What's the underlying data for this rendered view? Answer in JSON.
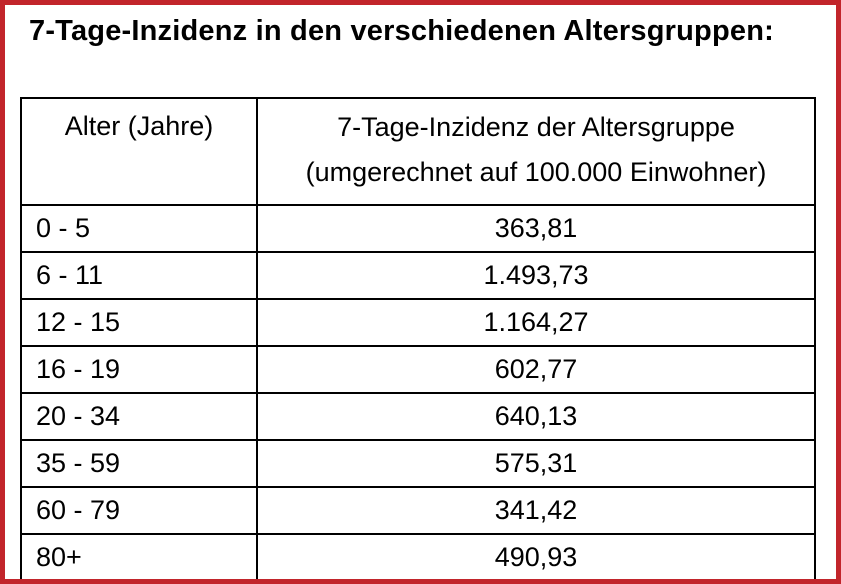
{
  "page": {
    "title": "7-Tage-Inzidenz in den verschiedenen Altersgruppen:"
  },
  "colors": {
    "frame_border": "#c2252b",
    "table_border": "#000000",
    "background": "#ffffff",
    "text": "#000000"
  },
  "table": {
    "headers": {
      "age": "Alter (Jahre)",
      "incidence_line1": "7-Tage-Inzidenz der Altersgruppe",
      "incidence_line2": "(umgerechnet auf 100.000 Einwohner)"
    },
    "rows": [
      {
        "age": "0 - 5",
        "incidence": "363,81"
      },
      {
        "age": "6 - 11",
        "incidence": "1.493,73"
      },
      {
        "age": "12 - 15",
        "incidence": "1.164,27"
      },
      {
        "age": "16 - 19",
        "incidence": "602,77"
      },
      {
        "age": "20 - 34",
        "incidence": "640,13"
      },
      {
        "age": "35 - 59",
        "incidence": "575,31"
      },
      {
        "age": "60 - 79",
        "incidence": "341,42"
      },
      {
        "age": "80+",
        "incidence": "490,93"
      }
    ]
  },
  "chart_data": {
    "type": "table",
    "title": "7-Tage-Inzidenz in den verschiedenen Altersgruppen",
    "columns": [
      "Alter (Jahre)",
      "7-Tage-Inzidenz der Altersgruppe (umgerechnet auf 100.000 Einwohner)"
    ],
    "categories": [
      "0 - 5",
      "6 - 11",
      "12 - 15",
      "16 - 19",
      "20 - 34",
      "35 - 59",
      "60 - 79",
      "80+"
    ],
    "values": [
      363.81,
      1493.73,
      1164.27,
      602.77,
      640.13,
      575.31,
      341.42,
      490.93
    ]
  }
}
